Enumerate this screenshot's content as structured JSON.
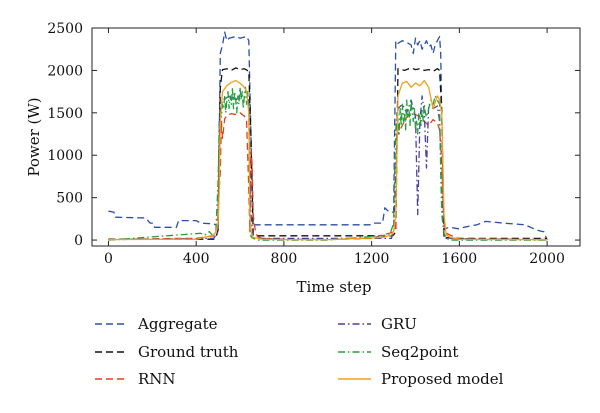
{
  "chart_data": {
    "type": "line",
    "title": "",
    "xlabel": "Time step",
    "ylabel": "Power (W)",
    "xlim": [
      -75,
      2150
    ],
    "ylim": [
      -70,
      2500
    ],
    "xticks": [
      0,
      400,
      800,
      1200,
      1600,
      2000
    ],
    "yticks": [
      0,
      500,
      1000,
      1500,
      2000,
      2500
    ],
    "grid": false,
    "legend_position": "below",
    "series": [
      {
        "name": "Aggregate",
        "color": "#2a4fa8",
        "dash": "dashed",
        "x": [
          0,
          25,
          30,
          170,
          190,
          205,
          210,
          310,
          320,
          400,
          420,
          480,
          495,
          500,
          510,
          520,
          530,
          540,
          550,
          580,
          600,
          630,
          640,
          650,
          660,
          900,
          1000,
          1200,
          1210,
          1250,
          1260,
          1280,
          1290,
          1300,
          1310,
          1320,
          1340,
          1360,
          1380,
          1390,
          1400,
          1410,
          1420,
          1430,
          1440,
          1450,
          1460,
          1470,
          1480,
          1490,
          1500,
          1510,
          1515,
          1520,
          1530,
          1540,
          1560,
          1600,
          1620,
          1660,
          1680,
          1700,
          1720,
          1800,
          1900,
          1950,
          1980,
          1985,
          2000
        ],
        "y": [
          340,
          330,
          270,
          260,
          200,
          200,
          150,
          150,
          230,
          230,
          200,
          190,
          170,
          170,
          2200,
          2300,
          2450,
          2350,
          2380,
          2400,
          2380,
          2400,
          2350,
          1200,
          180,
          180,
          180,
          180,
          200,
          200,
          380,
          330,
          330,
          330,
          2350,
          2320,
          2350,
          2330,
          2300,
          2200,
          2380,
          2300,
          2350,
          2250,
          2300,
          2350,
          2280,
          2300,
          2200,
          2300,
          2350,
          2400,
          2200,
          1400,
          120,
          140,
          150,
          130,
          150,
          170,
          180,
          200,
          220,
          200,
          180,
          120,
          100,
          100,
          0
        ]
      },
      {
        "name": "Ground truth",
        "color": "#111111",
        "dash": "dashed",
        "x": [
          0,
          480,
          490,
          500,
          510,
          520,
          540,
          560,
          580,
          600,
          620,
          640,
          650,
          660,
          670,
          800,
          1000,
          1290,
          1300,
          1310,
          1320,
          1350,
          1380,
          1400,
          1420,
          1440,
          1460,
          1480,
          1500,
          1510,
          1520,
          1530,
          1600,
          2000
        ],
        "y": [
          10,
          10,
          30,
          120,
          1800,
          2010,
          2020,
          2000,
          2030,
          2010,
          2020,
          1990,
          1200,
          60,
          50,
          50,
          50,
          50,
          60,
          100,
          2020,
          2000,
          2030,
          2010,
          2020,
          2000,
          2010,
          1990,
          2020,
          2000,
          1500,
          30,
          20,
          20
        ]
      },
      {
        "name": "RNN",
        "color": "#e0401c",
        "dash": "dashed",
        "x": [
          0,
          300,
          400,
          450,
          480,
          490,
          500,
          505,
          510,
          515,
          520,
          530,
          540,
          560,
          580,
          600,
          620,
          630,
          640,
          645,
          650,
          655,
          660,
          670,
          680,
          700,
          800,
          1000,
          1200,
          1250,
          1280,
          1300,
          1310,
          1315,
          1320,
          1340,
          1360,
          1380,
          1400,
          1420,
          1440,
          1460,
          1480,
          1500,
          1510,
          1520,
          1530,
          1540,
          1600,
          2000
        ],
        "y": [
          5,
          20,
          20,
          40,
          50,
          100,
          300,
          600,
          800,
          1400,
          1200,
          1430,
          1470,
          1490,
          1480,
          1500,
          1460,
          1400,
          600,
          100,
          1050,
          900,
          300,
          100,
          40,
          20,
          10,
          5,
          20,
          60,
          80,
          100,
          150,
          1300,
          1250,
          1350,
          1450,
          1500,
          1480,
          1450,
          1400,
          1350,
          1420,
          1380,
          1300,
          900,
          200,
          80,
          10,
          5
        ]
      },
      {
        "name": "GRU",
        "color": "#4b3fa0",
        "dash": "dashdot",
        "x": [
          0,
          480,
          500,
          505,
          510,
          520,
          540,
          560,
          580,
          600,
          620,
          640,
          650,
          660,
          1290,
          1300,
          1310,
          1320,
          1340,
          1360,
          1380,
          1400,
          1410,
          1420,
          1430,
          1440,
          1450,
          1460,
          1480,
          1500,
          1510,
          1520,
          1530,
          2000
        ],
        "y": [
          5,
          20,
          100,
          1400,
          1500,
          1650,
          1680,
          1700,
          1650,
          1700,
          1680,
          1650,
          300,
          20,
          20,
          100,
          800,
          1550,
          1600,
          1500,
          1650,
          1450,
          300,
          1400,
          1700,
          1500,
          850,
          1600,
          1550,
          1580,
          1400,
          500,
          20,
          5
        ]
      },
      {
        "name": "Seq2point",
        "color": "#22a03a",
        "dash": "dashdot",
        "x": [
          0,
          420,
          440,
          460,
          480,
          490,
          500,
          505,
          510,
          515,
          520,
          525,
          530,
          535,
          540,
          545,
          550,
          555,
          560,
          565,
          570,
          575,
          580,
          585,
          590,
          595,
          600,
          605,
          610,
          615,
          620,
          625,
          630,
          635,
          640,
          645,
          650,
          660,
          680,
          800,
          1000,
          1280,
          1290,
          1300,
          1305,
          1310,
          1315,
          1320,
          1325,
          1330,
          1335,
          1340,
          1345,
          1350,
          1355,
          1360,
          1365,
          1370,
          1375,
          1380,
          1385,
          1390,
          1395,
          1400,
          1405,
          1410,
          1415,
          1420,
          1425,
          1430,
          1435,
          1440,
          1445,
          1450,
          1460,
          1470,
          1480,
          1490,
          1500,
          1510,
          1515,
          1520,
          1530,
          1540,
          1560,
          2000
        ],
        "y": [
          0,
          80,
          60,
          100,
          40,
          120,
          700,
          1300,
          1500,
          1450,
          1600,
          1550,
          1700,
          1500,
          1650,
          1750,
          1550,
          1700,
          1600,
          1800,
          1550,
          1750,
          1650,
          1500,
          1700,
          1600,
          1800,
          1650,
          1750,
          1550,
          1700,
          1800,
          1600,
          1750,
          1500,
          300,
          40,
          20,
          0,
          0,
          0,
          60,
          120,
          200,
          800,
          1300,
          1500,
          1450,
          1250,
          1550,
          1350,
          1600,
          1400,
          1500,
          1300,
          1650,
          1450,
          1550,
          1350,
          1650,
          1500,
          1400,
          1550,
          1300,
          1400,
          1250,
          1500,
          1450,
          1350,
          1550,
          1400,
          1600,
          1500,
          1450,
          1550,
          1650,
          1600,
          1700,
          1650,
          1600,
          800,
          300,
          80,
          20,
          0,
          0
        ]
      },
      {
        "name": "Proposed model",
        "color": "#f0a020",
        "dash": "solid",
        "x": [
          0,
          400,
          450,
          480,
          490,
          500,
          505,
          510,
          520,
          540,
          560,
          580,
          600,
          620,
          630,
          640,
          645,
          650,
          660,
          700,
          800,
          1000,
          1250,
          1290,
          1300,
          1310,
          1320,
          1340,
          1360,
          1380,
          1400,
          1420,
          1440,
          1460,
          1480,
          1500,
          1510,
          1520,
          1530,
          1540,
          1560,
          1600,
          2000
        ],
        "y": [
          5,
          10,
          40,
          60,
          100,
          200,
          600,
          1400,
          1750,
          1820,
          1860,
          1880,
          1850,
          1800,
          1750,
          1500,
          300,
          100,
          30,
          10,
          5,
          5,
          30,
          60,
          100,
          300,
          1700,
          1850,
          1870,
          1800,
          1850,
          1820,
          1880,
          1800,
          1550,
          1700,
          1650,
          1500,
          300,
          60,
          30,
          10,
          5
        ]
      }
    ]
  }
}
